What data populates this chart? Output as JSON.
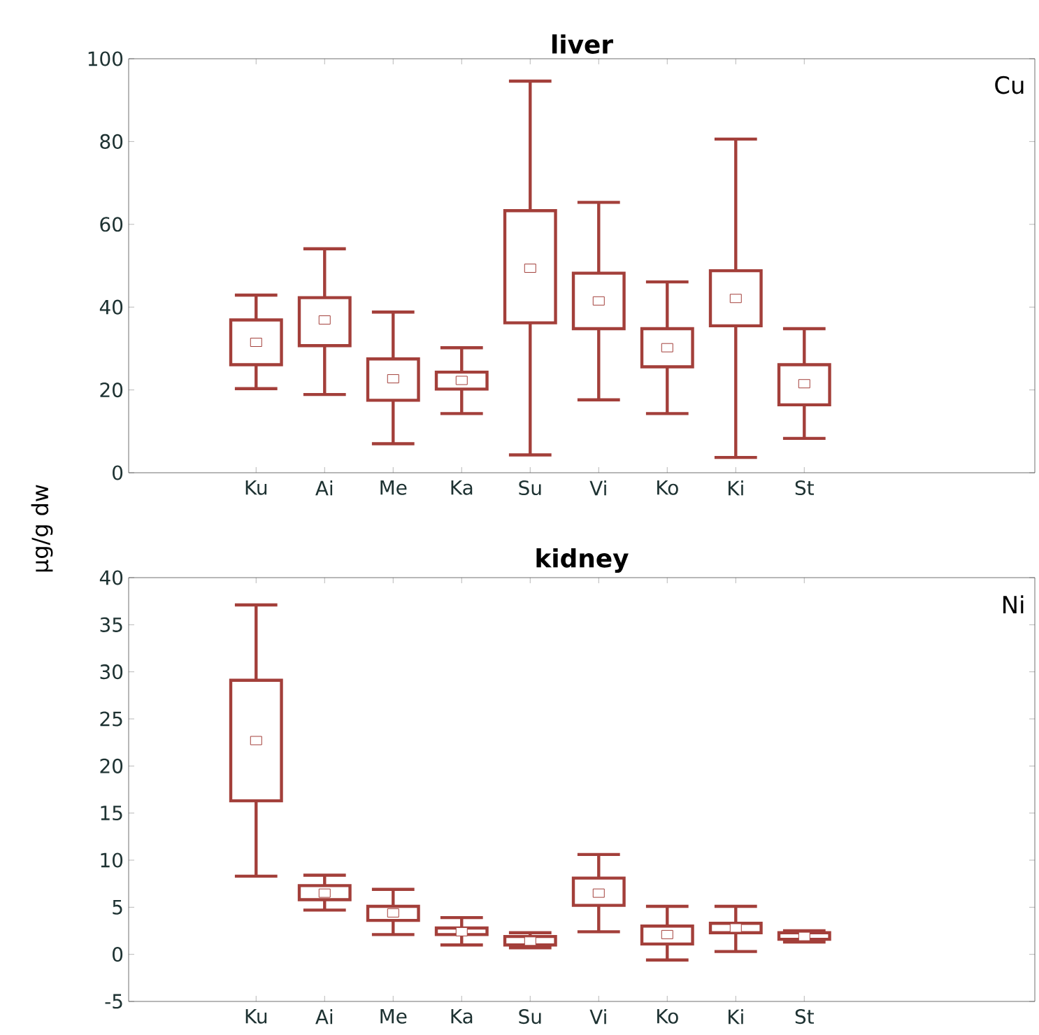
{
  "chart_data": [
    {
      "type": "box",
      "title": "liver",
      "ylabel": "µg/g dw",
      "annotations": [
        "Cu"
      ],
      "color": "#a33f3a",
      "categories": [
        "Ku",
        "Ai",
        "Me",
        "Ka",
        "Su",
        "Vi",
        "Ko",
        "Ki",
        "St"
      ],
      "boxes": [
        {
          "low": 20.3,
          "q1": 26.1,
          "median": 31.5,
          "q3": 36.9,
          "high": 42.9
        },
        {
          "low": 18.9,
          "q1": 30.7,
          "median": 36.9,
          "q3": 42.3,
          "high": 54.1
        },
        {
          "low": 7.0,
          "q1": 17.5,
          "median": 22.7,
          "q3": 27.5,
          "high": 38.8
        },
        {
          "low": 14.3,
          "q1": 20.2,
          "median": 22.3,
          "q3": 24.3,
          "high": 30.2
        },
        {
          "low": 4.3,
          "q1": 36.2,
          "median": 49.4,
          "q3": 63.3,
          "high": 94.6
        },
        {
          "low": 17.6,
          "q1": 34.8,
          "median": 41.5,
          "q3": 48.2,
          "high": 65.3
        },
        {
          "low": 14.3,
          "q1": 25.6,
          "median": 30.2,
          "q3": 34.8,
          "high": 46.1
        },
        {
          "low": 3.7,
          "q1": 35.5,
          "median": 42.1,
          "q3": 48.8,
          "high": 80.6
        },
        {
          "low": 8.3,
          "q1": 16.4,
          "median": 21.5,
          "q3": 26.1,
          "high": 34.8
        }
      ],
      "ylim": [
        0,
        100
      ],
      "yticks": [
        0,
        20,
        40,
        60,
        80,
        100
      ],
      "grid": false
    },
    {
      "type": "box",
      "title": "kidney",
      "annotations": [
        "Ni"
      ],
      "color": "#a33f3a",
      "categories": [
        "Ku",
        "Ai",
        "Me",
        "Ka",
        "Su",
        "Vi",
        "Ko",
        "Ki",
        "St"
      ],
      "boxes": [
        {
          "low": 8.3,
          "q1": 16.3,
          "median": 22.7,
          "q3": 29.1,
          "high": 37.1
        },
        {
          "low": 4.7,
          "q1": 5.8,
          "median": 6.5,
          "q3": 7.3,
          "high": 8.4
        },
        {
          "low": 2.1,
          "q1": 3.6,
          "median": 4.4,
          "q3": 5.1,
          "high": 6.9
        },
        {
          "low": 1.0,
          "q1": 2.1,
          "median": 2.4,
          "q3": 2.8,
          "high": 3.9
        },
        {
          "low": 0.7,
          "q1": 1.0,
          "median": 1.4,
          "q3": 1.9,
          "high": 2.3
        },
        {
          "low": 2.4,
          "q1": 5.2,
          "median": 6.5,
          "q3": 8.1,
          "high": 10.6
        },
        {
          "low": -0.6,
          "q1": 1.1,
          "median": 2.1,
          "q3": 3.0,
          "high": 5.1
        },
        {
          "low": 0.3,
          "q1": 2.3,
          "median": 2.8,
          "q3": 3.3,
          "high": 5.1
        },
        {
          "low": 1.3,
          "q1": 1.6,
          "median": 1.9,
          "q3": 2.3,
          "high": 2.5
        }
      ],
      "ylim": [
        -5,
        40
      ],
      "yticks": [
        -5,
        0,
        5,
        10,
        15,
        20,
        25,
        30,
        35,
        40
      ],
      "grid": false
    }
  ]
}
